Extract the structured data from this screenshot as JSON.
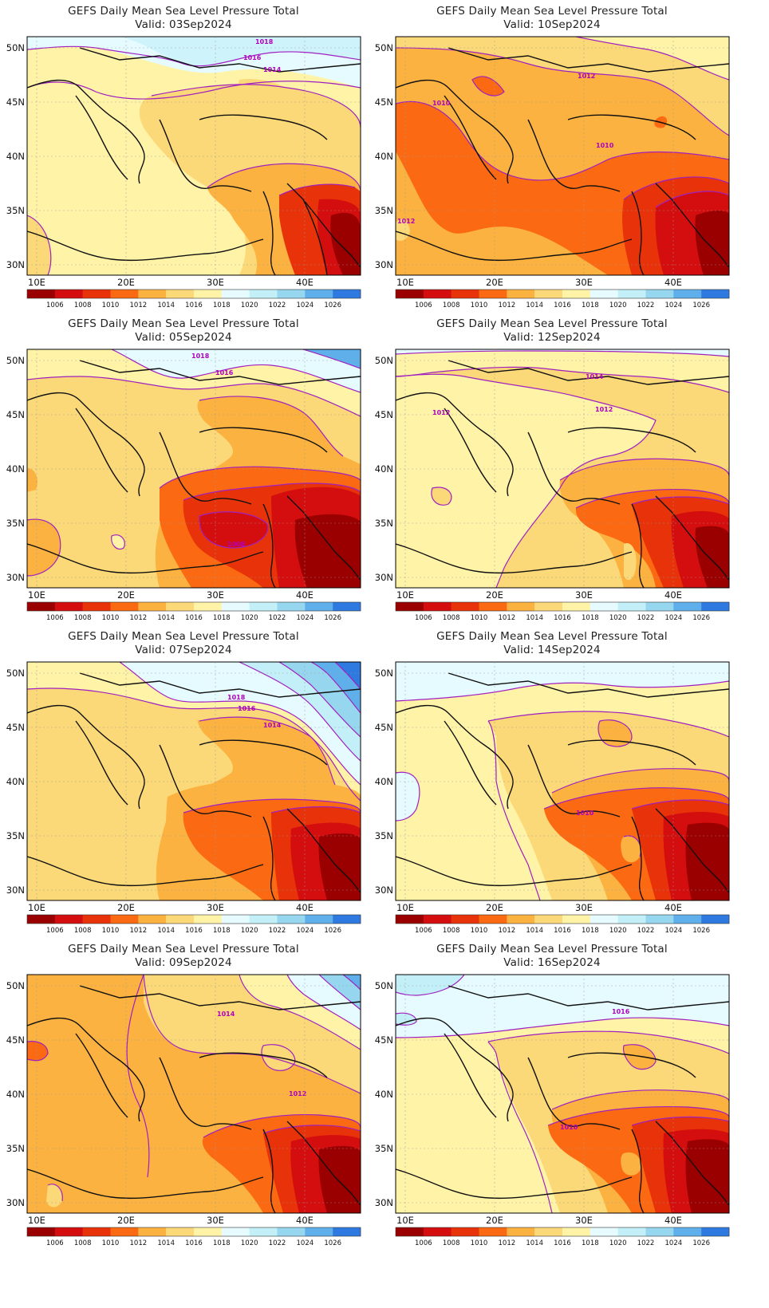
{
  "title_line1": "GEFS Daily Mean Sea Level Pressure Total",
  "valid_prefix": "Valid:",
  "x_ticks": [
    "10E",
    "20E",
    "30E",
    "40E"
  ],
  "y_ticks": [
    "50N",
    "45N",
    "40N",
    "35N",
    "30N"
  ],
  "colorbar": {
    "labels": [
      "1006",
      "1008",
      "1010",
      "1012",
      "1014",
      "1016",
      "1018",
      "1020",
      "1022",
      "1024",
      "1026"
    ],
    "colors": [
      "#9b0000",
      "#d40e0e",
      "#e8320a",
      "#fb6a12",
      "#fbb240",
      "#fcd978",
      "#fff3a8",
      "#e6fbff",
      "#c3f0f8",
      "#96d6ef",
      "#5fb0ea",
      "#2f7ae0"
    ]
  },
  "panels": [
    {
      "id": "p1",
      "valid": "03Sep2024",
      "labels": [
        "1018",
        "1016",
        "1014"
      ]
    },
    {
      "id": "p2",
      "valid": "10Sep2024",
      "labels": [
        "1012",
        "1010",
        "1010",
        "1012"
      ]
    },
    {
      "id": "p3",
      "valid": "05Sep2024",
      "labels": [
        "1018",
        "1016",
        "1008"
      ]
    },
    {
      "id": "p4",
      "valid": "12Sep2024",
      "labels": [
        "1014",
        "1012",
        "1012"
      ]
    },
    {
      "id": "p5",
      "valid": "07Sep2024",
      "labels": [
        "1018",
        "1016",
        "1014"
      ]
    },
    {
      "id": "p6",
      "valid": "14Sep2024",
      "labels": [
        "1010"
      ]
    },
    {
      "id": "p7",
      "valid": "09Sep2024",
      "labels": [
        "1014",
        "1012"
      ]
    },
    {
      "id": "p8",
      "valid": "16Sep2024",
      "labels": [
        "1016",
        "1010"
      ]
    }
  ]
}
